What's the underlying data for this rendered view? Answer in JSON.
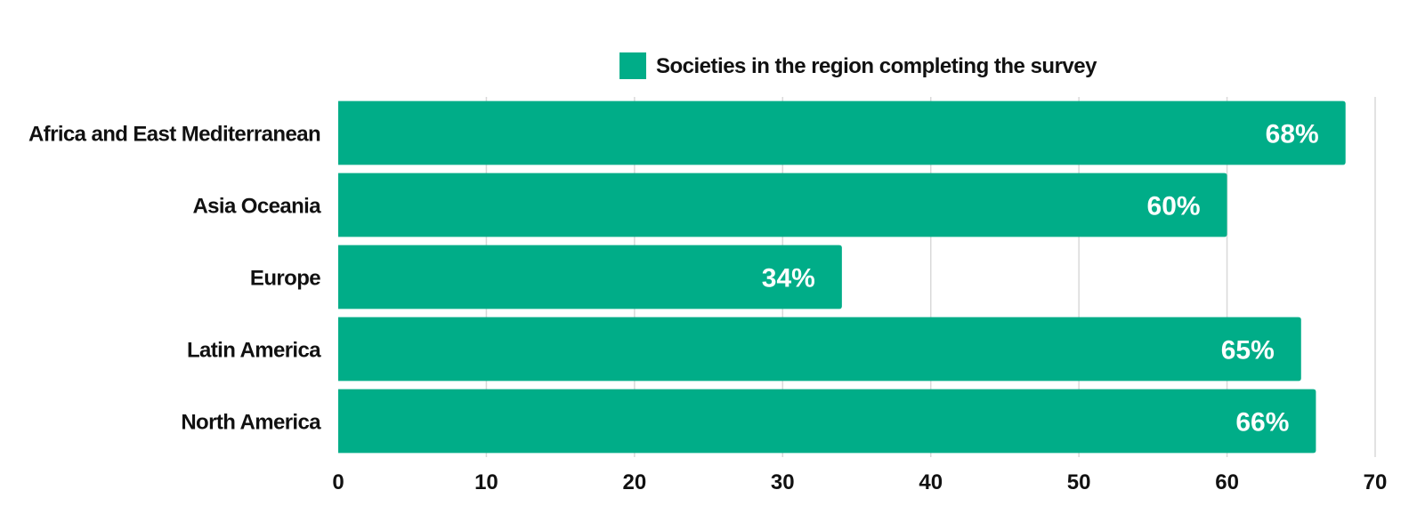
{
  "chart_data": {
    "type": "bar",
    "orientation": "horizontal",
    "categories": [
      "Africa and East Mediterranean",
      "Asia Oceania",
      "Europe",
      "Latin America",
      "North America"
    ],
    "series": [
      {
        "name": "Societies in the region completing the survey",
        "values": [
          68,
          60,
          34,
          65,
          66
        ],
        "data_labels": [
          "68%",
          "60%",
          "34%",
          "65%",
          "66%"
        ],
        "color": "#00ad88"
      }
    ],
    "x_ticks": [
      "0",
      "10",
      "20",
      "30",
      "40",
      "50",
      "60",
      "70"
    ],
    "xlim": [
      0,
      70
    ],
    "grid": true,
    "legend_position": "top-center",
    "title": "",
    "xlabel": "",
    "ylabel": ""
  }
}
